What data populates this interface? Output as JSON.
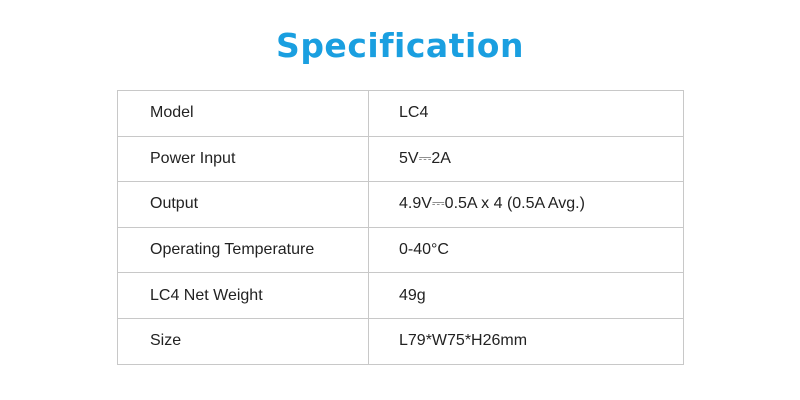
{
  "title": "Specification",
  "rows": [
    {
      "label": "Model",
      "value": "LC4"
    },
    {
      "label": "Power Input",
      "value": "5V⎓2A"
    },
    {
      "label": "Output",
      "value": "4.9V⎓0.5A x 4 (0.5A Avg.)"
    },
    {
      "label": "Operating Temperature",
      "value": "0-40°C"
    },
    {
      "label": "LC4 Net Weight",
      "value": "49g"
    },
    {
      "label": "Size",
      "value": "L79*W75*H26mm"
    }
  ],
  "colors": {
    "accent": "#1a9fe0",
    "border": "#c8c8c8"
  }
}
